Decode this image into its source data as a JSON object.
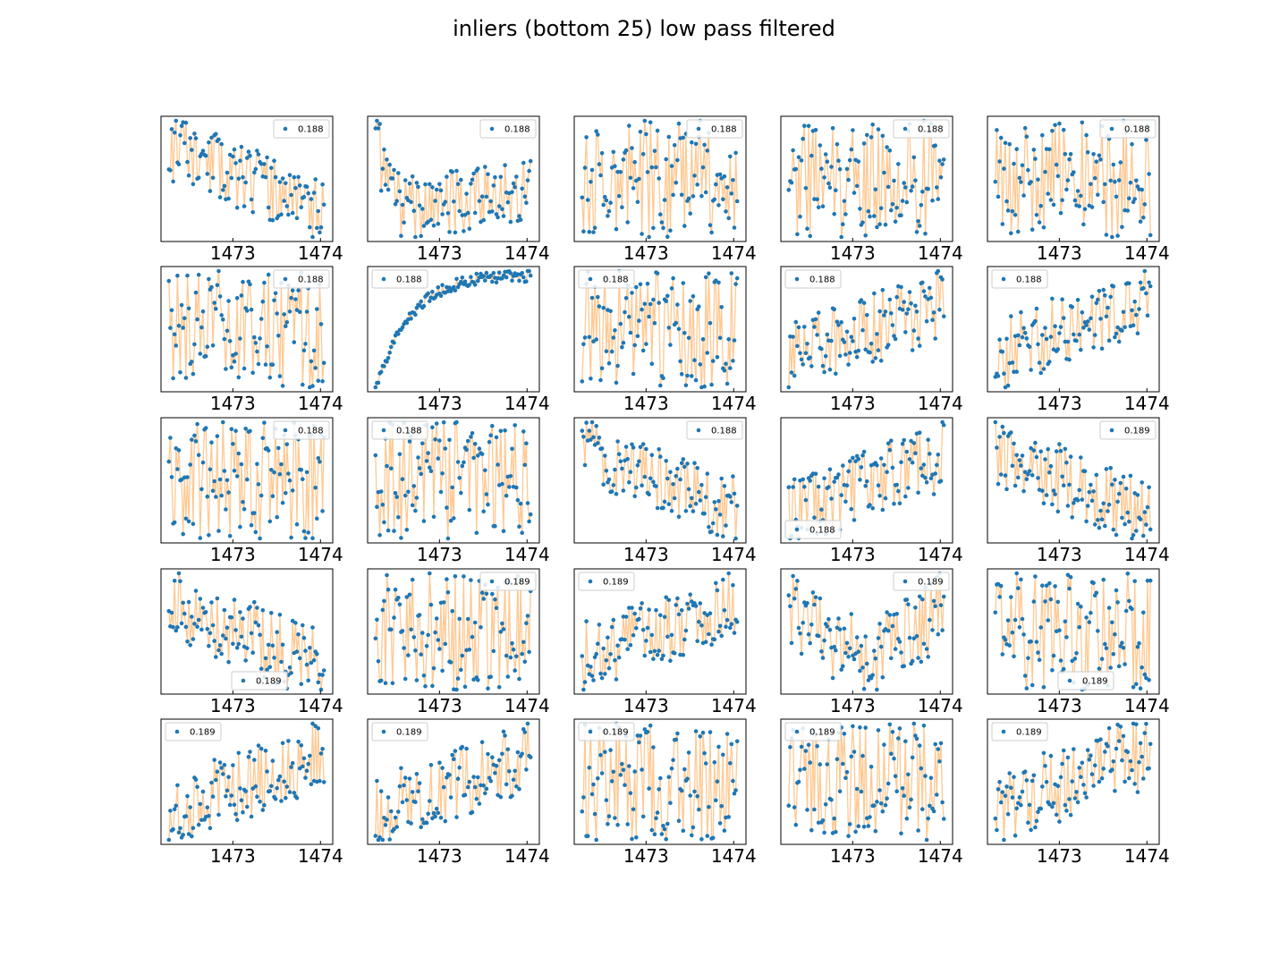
{
  "title": "inliers (bottom 25) low pass filtered",
  "colors": {
    "marker": "#1f77b4",
    "line": "#ffbb78",
    "axes": "#000000",
    "legend_edge": "#cccccc"
  },
  "chart_data": {
    "type": "scatter",
    "layout": "5x5 grid of small multiples, each with markers connected by a light orange line",
    "x_ticks": [
      "1473",
      "1474"
    ],
    "x_tick_values": [
      1473,
      1474
    ],
    "xlim": [
      1472.18,
      1474.14
    ],
    "y_axis": "no tick labels",
    "grid": false,
    "panels": [
      {
        "legend": "0.188",
        "legend_loc": "upper right",
        "seed": 11,
        "trend": "decreasing"
      },
      {
        "legend": "0.188",
        "legend_loc": "upper right",
        "seed": 12,
        "trend": "initial-drop"
      },
      {
        "legend": "0.188",
        "legend_loc": "upper right",
        "seed": 13,
        "trend": "flat"
      },
      {
        "legend": "0.188",
        "legend_loc": "upper right",
        "seed": 14,
        "trend": "flat"
      },
      {
        "legend": "0.188",
        "legend_loc": "upper right",
        "seed": 15,
        "trend": "flat"
      },
      {
        "legend": "0.188",
        "legend_loc": "upper right",
        "seed": 21,
        "trend": "flat"
      },
      {
        "legend": "0.188",
        "legend_loc": "upper left",
        "seed": 22,
        "trend": "saturating-rise"
      },
      {
        "legend": "0.188",
        "legend_loc": "upper left",
        "seed": 23,
        "trend": "flat"
      },
      {
        "legend": "0.188",
        "legend_loc": "upper left",
        "seed": 24,
        "trend": "increasing"
      },
      {
        "legend": "0.188",
        "legend_loc": "upper left",
        "seed": 25,
        "trend": "increasing"
      },
      {
        "legend": "0.188",
        "legend_loc": "upper right",
        "seed": 31,
        "trend": "flat"
      },
      {
        "legend": "0.188",
        "legend_loc": "upper left",
        "seed": 32,
        "trend": "flat"
      },
      {
        "legend": "0.188",
        "legend_loc": "upper right",
        "seed": 33,
        "trend": "decreasing"
      },
      {
        "legend": "0.188",
        "legend_loc": "lower left",
        "seed": 34,
        "trend": "increasing"
      },
      {
        "legend": "0.189",
        "legend_loc": "upper right",
        "seed": 35,
        "trend": "decreasing"
      },
      {
        "legend": "0.189",
        "legend_loc": "lower center",
        "seed": 41,
        "trend": "decreasing"
      },
      {
        "legend": "0.189",
        "legend_loc": "upper right",
        "seed": 42,
        "trend": "flat"
      },
      {
        "legend": "0.189",
        "legend_loc": "upper left",
        "seed": 43,
        "trend": "increasing"
      },
      {
        "legend": "0.189",
        "legend_loc": "upper right",
        "seed": 44,
        "trend": "dip"
      },
      {
        "legend": "0.189",
        "legend_loc": "lower center",
        "seed": 45,
        "trend": "flat"
      },
      {
        "legend": "0.189",
        "legend_loc": "upper left",
        "seed": 51,
        "trend": "increasing"
      },
      {
        "legend": "0.189",
        "legend_loc": "upper left",
        "seed": 52,
        "trend": "increasing"
      },
      {
        "legend": "0.189",
        "legend_loc": "upper left",
        "seed": 53,
        "trend": "flat"
      },
      {
        "legend": "0.189",
        "legend_loc": "upper left",
        "seed": 54,
        "trend": "flat"
      },
      {
        "legend": "0.189",
        "legend_loc": "upper left",
        "seed": 55,
        "trend": "increasing"
      }
    ]
  }
}
